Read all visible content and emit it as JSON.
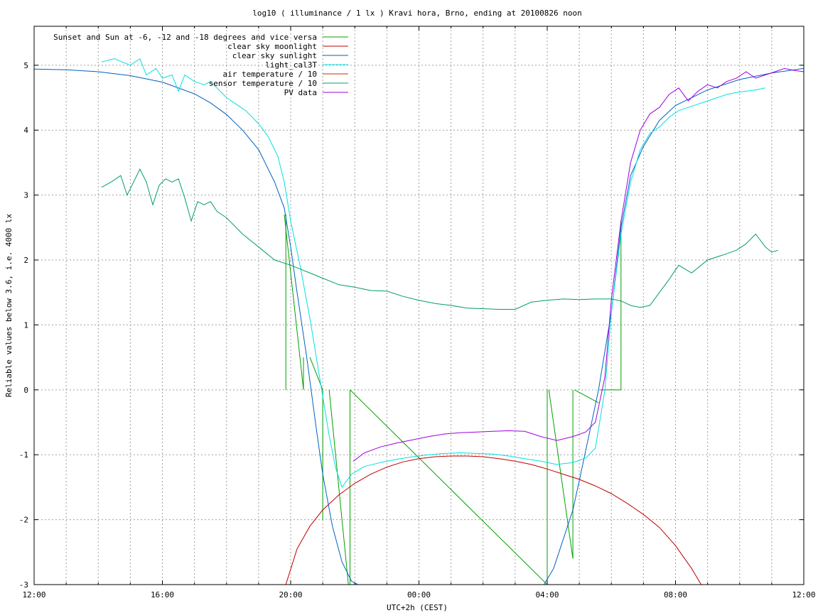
{
  "chart_data": {
    "type": "line",
    "title": "log10 ( illuminance / 1 lx ) Kravi hora, Brno, ending at 20100826 noon",
    "xlabel": "UTC+2h (CEST)",
    "ylabel": "Reliable values below 3.6, i.e. 4000 lx",
    "x_unit": "hours since 12:00",
    "xlim": [
      0,
      24
    ],
    "ylim": [
      -3,
      5.6
    ],
    "xticks": [
      {
        "x": 0,
        "label": "12:00"
      },
      {
        "x": 4,
        "label": "16:00"
      },
      {
        "x": 8,
        "label": "20:00"
      },
      {
        "x": 12,
        "label": "00:00"
      },
      {
        "x": 16,
        "label": "04:00"
      },
      {
        "x": 20,
        "label": "08:00"
      },
      {
        "x": 24,
        "label": "12:00"
      }
    ],
    "yticks": [
      -3,
      -2,
      -1,
      0,
      1,
      2,
      3,
      4,
      5
    ],
    "grid": true,
    "legend_position": "top-left",
    "series": [
      {
        "name": "Sunset and Sun at -6, -12 and -18 degrees and vice versa",
        "color": "#00a000",
        "kind": "impulses",
        "x": [
          7.8,
          8.4,
          8.6,
          9.0,
          9.2,
          9.8,
          9.85,
          16.0,
          16.05,
          16.8,
          16.85,
          17.6,
          17.65,
          18.3,
          18.35
        ],
        "y": [
          2.7,
          0.0,
          0.5,
          0.0,
          0.0,
          -3.0,
          0.0,
          -3.0,
          0.0,
          -2.6,
          0.0,
          -0.2,
          0.0,
          0.0,
          2.6
        ]
      },
      {
        "name": "clear sky moonlight",
        "color": "#c00000",
        "x": [
          7.85,
          8.2,
          8.6,
          9.0,
          9.5,
          10.0,
          10.5,
          11.0,
          11.5,
          12.0,
          12.5,
          13.0,
          13.5,
          14.0,
          14.5,
          15.0,
          15.5,
          16.0,
          16.5,
          17.0,
          17.5,
          18.0,
          18.5,
          19.0,
          19.5,
          20.0,
          20.5,
          20.8
        ],
        "y": [
          -3.0,
          -2.45,
          -2.1,
          -1.85,
          -1.62,
          -1.44,
          -1.3,
          -1.19,
          -1.11,
          -1.06,
          -1.03,
          -1.02,
          -1.02,
          -1.03,
          -1.06,
          -1.1,
          -1.15,
          -1.22,
          -1.3,
          -1.38,
          -1.48,
          -1.6,
          -1.75,
          -1.92,
          -2.12,
          -2.4,
          -2.75,
          -3.0
        ]
      },
      {
        "name": "clear sky sunlight",
        "color": "#0060c0",
        "x": [
          0,
          1,
          2,
          3,
          4,
          5,
          5.5,
          6,
          6.5,
          7,
          7.5,
          7.8,
          8.0,
          8.2,
          8.5,
          8.8,
          9.0,
          9.3,
          9.6,
          9.9,
          10.1,
          15.9,
          16.2,
          16.5,
          16.8,
          17.0,
          17.3,
          17.6,
          17.9,
          18.0,
          18.3,
          18.6,
          19.0,
          19.5,
          20,
          21,
          22,
          23,
          24
        ],
        "y": [
          4.94,
          4.93,
          4.9,
          4.84,
          4.74,
          4.56,
          4.42,
          4.24,
          4.0,
          3.7,
          3.2,
          2.8,
          2.2,
          1.5,
          0.5,
          -0.6,
          -1.3,
          -2.1,
          -2.65,
          -2.95,
          -3.0,
          -3.0,
          -2.75,
          -2.3,
          -1.85,
          -1.4,
          -0.7,
          0.0,
          0.9,
          1.2,
          2.5,
          3.3,
          3.75,
          4.15,
          4.38,
          4.62,
          4.78,
          4.88,
          4.95
        ]
      },
      {
        "name": "light_cal3T",
        "color": "#00e0e0",
        "x": [
          2.1,
          2.5,
          3.0,
          3.3,
          3.5,
          3.8,
          4.0,
          4.3,
          4.5,
          4.7,
          5.0,
          5.3,
          5.5,
          5.7,
          6.0,
          6.3,
          6.6,
          7.0,
          7.3,
          7.6,
          7.8,
          8.0,
          8.3,
          8.6,
          8.9,
          9.2,
          9.4,
          9.6,
          9.9,
          10.3,
          10.8,
          11.3,
          11.8,
          12.3,
          12.8,
          13.3,
          13.8,
          14.3,
          14.8,
          15.3,
          15.8,
          16.3,
          16.8,
          17.2,
          17.5,
          17.8,
          18.0,
          18.3,
          18.6,
          18.9,
          19.2,
          19.5,
          19.8,
          20.1,
          20.4,
          20.7,
          21.0,
          21.3,
          21.6,
          21.9,
          22.2,
          22.5,
          22.8
        ],
        "y": [
          5.05,
          5.1,
          5.0,
          5.1,
          4.85,
          4.95,
          4.8,
          4.85,
          4.6,
          4.85,
          4.75,
          4.7,
          4.75,
          4.65,
          4.5,
          4.4,
          4.3,
          4.1,
          3.9,
          3.6,
          3.2,
          2.6,
          1.9,
          1.1,
          0.2,
          -0.7,
          -1.2,
          -1.5,
          -1.3,
          -1.18,
          -1.12,
          -1.07,
          -1.03,
          -1.0,
          -0.98,
          -0.97,
          -0.98,
          -0.99,
          -1.02,
          -1.06,
          -1.1,
          -1.15,
          -1.12,
          -1.05,
          -0.9,
          0.0,
          1.2,
          2.4,
          3.2,
          3.7,
          3.95,
          4.05,
          4.2,
          4.3,
          4.35,
          4.4,
          4.45,
          4.5,
          4.55,
          4.58,
          4.6,
          4.62,
          4.65
        ]
      },
      {
        "name": "air temperature / 10",
        "color": "#c03000",
        "x": [],
        "y": []
      },
      {
        "name": "sensor temperature / 10",
        "color": "#00a060",
        "x": [
          2.1,
          2.4,
          2.7,
          2.9,
          3.1,
          3.3,
          3.5,
          3.7,
          3.9,
          4.1,
          4.3,
          4.5,
          4.7,
          4.9,
          5.1,
          5.3,
          5.5,
          5.7,
          6.0,
          6.5,
          7.0,
          7.5,
          8.0,
          8.5,
          9.0,
          9.5,
          10.0,
          10.5,
          11.0,
          11.5,
          12.0,
          12.5,
          13.0,
          13.5,
          14.0,
          14.5,
          15.0,
          15.5,
          16.0,
          16.5,
          17.0,
          17.5,
          18.0,
          18.3,
          18.6,
          18.9,
          19.2,
          19.5,
          19.8,
          20.1,
          20.5,
          21.0,
          21.5,
          21.9,
          22.2,
          22.5,
          22.8,
          23.0,
          23.2
        ],
        "y": [
          3.12,
          3.2,
          3.3,
          3.0,
          3.2,
          3.4,
          3.2,
          2.85,
          3.15,
          3.25,
          3.2,
          3.25,
          2.95,
          2.6,
          2.9,
          2.85,
          2.9,
          2.75,
          2.65,
          2.4,
          2.2,
          2.0,
          1.92,
          1.82,
          1.72,
          1.62,
          1.58,
          1.53,
          1.52,
          1.44,
          1.38,
          1.33,
          1.3,
          1.26,
          1.25,
          1.24,
          1.24,
          1.35,
          1.38,
          1.4,
          1.39,
          1.4,
          1.4,
          1.37,
          1.3,
          1.27,
          1.3,
          1.5,
          1.7,
          1.92,
          1.8,
          2.0,
          2.08,
          2.15,
          2.25,
          2.4,
          2.2,
          2.12,
          2.15
        ]
      },
      {
        "name": "PV data",
        "color": "#a000e0",
        "x": [
          9.95,
          10.3,
          10.8,
          11.3,
          11.8,
          12.3,
          12.8,
          13.3,
          13.8,
          14.3,
          14.8,
          15.3,
          15.8,
          16.3,
          16.8,
          17.2,
          17.5,
          17.8,
          18.0,
          18.3,
          18.6,
          18.9,
          19.2,
          19.5,
          19.8,
          20.1,
          20.4,
          20.7,
          21.0,
          21.3,
          21.6,
          21.9,
          22.2,
          22.5,
          22.8,
          23.1,
          23.4,
          23.7,
          24.0
        ],
        "y": [
          -1.1,
          -0.97,
          -0.88,
          -0.82,
          -0.77,
          -0.72,
          -0.68,
          -0.66,
          -0.65,
          -0.64,
          -0.63,
          -0.64,
          -0.72,
          -0.78,
          -0.72,
          -0.65,
          -0.5,
          0.2,
          1.4,
          2.6,
          3.5,
          4.0,
          4.25,
          4.35,
          4.55,
          4.65,
          4.45,
          4.6,
          4.7,
          4.65,
          4.75,
          4.8,
          4.9,
          4.8,
          4.85,
          4.9,
          4.95,
          4.92,
          4.9
        ]
      }
    ]
  }
}
